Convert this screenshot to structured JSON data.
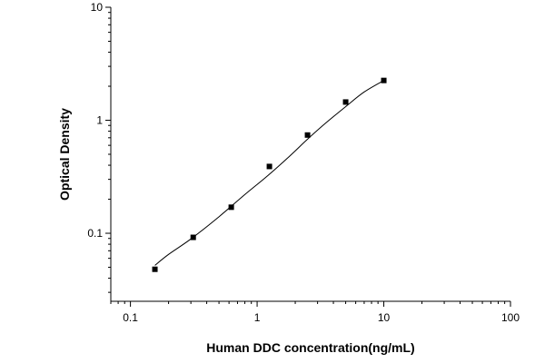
{
  "chart_data": {
    "type": "scatter",
    "title": "",
    "xlabel": "Human DDC concentration(ng/mL)",
    "ylabel": "Optical Density",
    "x_scale": "log",
    "y_scale": "log",
    "xlim": [
      0.07,
      100
    ],
    "ylim": [
      0.025,
      10
    ],
    "grid": false,
    "legend": "none",
    "x_ticks": [
      {
        "value": 0.1,
        "label": "0.1"
      },
      {
        "value": 1,
        "label": "1"
      },
      {
        "value": 10,
        "label": "10"
      },
      {
        "value": 100,
        "label": "100"
      }
    ],
    "y_ticks": [
      {
        "value": 0.1,
        "label": "0.1"
      },
      {
        "value": 1,
        "label": "1"
      },
      {
        "value": 10,
        "label": "10"
      }
    ],
    "series": [
      {
        "marker": "square",
        "x": [
          0.156,
          0.313,
          0.625,
          1.25,
          2.5,
          5,
          10
        ],
        "y": [
          0.048,
          0.092,
          0.17,
          0.39,
          0.74,
          1.45,
          2.25
        ]
      }
    ],
    "fit_curve": {
      "x": [
        0.156,
        0.2,
        0.3,
        0.5,
        0.8,
        1.2,
        1.8,
        2.5,
        3.5,
        5,
        7,
        10
      ],
      "y": [
        0.052,
        0.065,
        0.089,
        0.14,
        0.22,
        0.32,
        0.48,
        0.68,
        0.95,
        1.32,
        1.78,
        2.25
      ]
    },
    "colors": {
      "marker": "#000000",
      "curve": "#000000",
      "axis": "#000000"
    }
  }
}
